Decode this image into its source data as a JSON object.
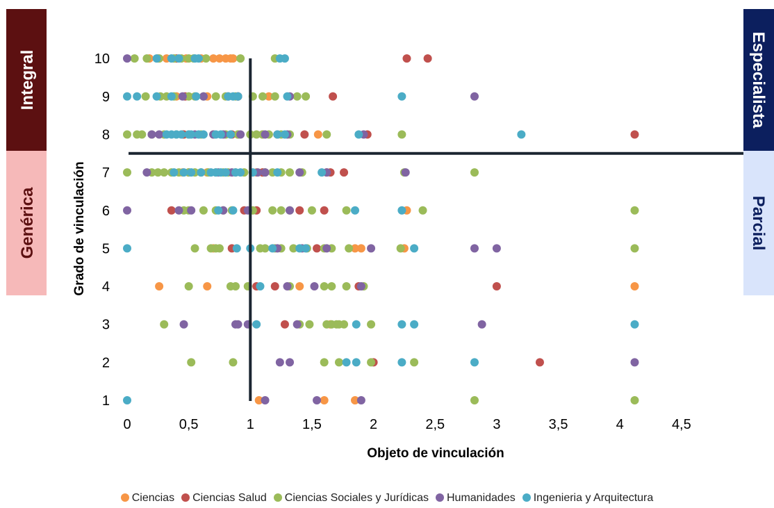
{
  "chart_data": {
    "type": "scatter",
    "xlabel": "Objeto de vinculación",
    "ylabel": "Grado de vinculación",
    "xlim": [
      0,
      4.5
    ],
    "ylim": [
      1,
      10
    ],
    "xticks": [
      "0",
      "0,5",
      "1",
      "1,5",
      "2",
      "2,5",
      "3",
      "3,5",
      "4",
      "4,5"
    ],
    "yticks": [
      "1",
      "2",
      "3",
      "4",
      "5",
      "6",
      "7",
      "8",
      "9",
      "10"
    ],
    "reference_lines": {
      "x": 1,
      "y": 7.5
    },
    "quadrant_labels": [
      {
        "text": "Integral",
        "position": "top-left",
        "color": "#5c1011",
        "text_color": "#ffffff"
      },
      {
        "text": "Genérica",
        "position": "bottom-left",
        "color": "#f6b9b9",
        "text_color": "#5c1011"
      },
      {
        "text": "Especialista",
        "position": "top-right",
        "color": "#0c1f5e",
        "text_color": "#ffffff"
      },
      {
        "text": "Parcial",
        "position": "bottom-right",
        "color": "#d9e4fb",
        "text_color": "#0c1f5e"
      }
    ],
    "legend_position": "bottom",
    "series": [
      {
        "name": "Ciencias",
        "color": "#f79646",
        "points": [
          [
            0.25,
            10
          ],
          [
            0.18,
            10
          ],
          [
            0.32,
            10
          ],
          [
            0.48,
            10
          ],
          [
            0.6,
            10
          ],
          [
            0.7,
            10
          ],
          [
            0.75,
            10
          ],
          [
            0.8,
            10
          ],
          [
            0.84,
            10
          ],
          [
            0.86,
            10
          ],
          [
            0.4,
            9
          ],
          [
            0.65,
            9
          ],
          [
            1.15,
            9
          ],
          [
            0.45,
            8
          ],
          [
            0.9,
            8
          ],
          [
            1.55,
            8
          ],
          [
            0.45,
            7
          ],
          [
            0.65,
            7
          ],
          [
            1.05,
            7
          ],
          [
            1.1,
            7
          ],
          [
            2.27,
            6
          ],
          [
            0.7,
            5
          ],
          [
            1.85,
            5
          ],
          [
            1.9,
            5
          ],
          [
            2.25,
            5
          ],
          [
            0.26,
            4
          ],
          [
            0.65,
            4
          ],
          [
            1.4,
            4
          ],
          [
            4.12,
            4
          ],
          [
            1.65,
            3
          ],
          [
            1.07,
            1
          ],
          [
            1.6,
            1
          ],
          [
            1.85,
            1
          ]
        ]
      },
      {
        "name": "Ciencias Salud",
        "color": "#c0504d",
        "points": [
          [
            0.4,
            10
          ],
          [
            2.27,
            10
          ],
          [
            2.44,
            10
          ],
          [
            0.47,
            9
          ],
          [
            0.9,
            9
          ],
          [
            1.67,
            9
          ],
          [
            0.46,
            8
          ],
          [
            0.85,
            8
          ],
          [
            1.1,
            8
          ],
          [
            1.22,
            8
          ],
          [
            1.44,
            8
          ],
          [
            1.95,
            8
          ],
          [
            4.12,
            8
          ],
          [
            0.5,
            7
          ],
          [
            1.1,
            7
          ],
          [
            1.62,
            7
          ],
          [
            1.65,
            7
          ],
          [
            1.76,
            7
          ],
          [
            0.36,
            6
          ],
          [
            0.95,
            6
          ],
          [
            1.05,
            6
          ],
          [
            1.4,
            6
          ],
          [
            1.6,
            6
          ],
          [
            0.85,
            5
          ],
          [
            1.54,
            5
          ],
          [
            1.05,
            4
          ],
          [
            1.2,
            4
          ],
          [
            1.88,
            4
          ],
          [
            3,
            4
          ],
          [
            1.28,
            3
          ],
          [
            2.0,
            2
          ],
          [
            3.35,
            2
          ]
        ]
      },
      {
        "name": "Ciencias Sociales y Jurídicas",
        "color": "#9bbb59",
        "points": [
          [
            0.06,
            10
          ],
          [
            0.16,
            10
          ],
          [
            0.26,
            10
          ],
          [
            0.38,
            10
          ],
          [
            0.44,
            10
          ],
          [
            0.5,
            10
          ],
          [
            0.54,
            10
          ],
          [
            0.64,
            10
          ],
          [
            0.92,
            10
          ],
          [
            1.2,
            10
          ],
          [
            0.15,
            9
          ],
          [
            0.27,
            9
          ],
          [
            0.32,
            9
          ],
          [
            0.38,
            9
          ],
          [
            0.5,
            9
          ],
          [
            0.55,
            9
          ],
          [
            0.62,
            9
          ],
          [
            0.72,
            9
          ],
          [
            0.8,
            9
          ],
          [
            0.88,
            9
          ],
          [
            1.02,
            9
          ],
          [
            1.1,
            9
          ],
          [
            1.2,
            9
          ],
          [
            1.38,
            9
          ],
          [
            1.45,
            9
          ],
          [
            0.0,
            8
          ],
          [
            0.08,
            8
          ],
          [
            0.12,
            8
          ],
          [
            0.2,
            8
          ],
          [
            0.3,
            8
          ],
          [
            0.4,
            8
          ],
          [
            0.5,
            8
          ],
          [
            0.6,
            8
          ],
          [
            0.7,
            8
          ],
          [
            0.8,
            8
          ],
          [
            0.9,
            8
          ],
          [
            1.0,
            8
          ],
          [
            1.05,
            8
          ],
          [
            1.1,
            8
          ],
          [
            1.15,
            8
          ],
          [
            1.25,
            8
          ],
          [
            1.32,
            8
          ],
          [
            1.62,
            8
          ],
          [
            2.23,
            8
          ],
          [
            0.0,
            7
          ],
          [
            0.2,
            7
          ],
          [
            0.25,
            7
          ],
          [
            0.3,
            7
          ],
          [
            0.36,
            7
          ],
          [
            0.42,
            7
          ],
          [
            0.5,
            7
          ],
          [
            0.55,
            7
          ],
          [
            0.6,
            7
          ],
          [
            0.66,
            7
          ],
          [
            0.72,
            7
          ],
          [
            0.78,
            7
          ],
          [
            0.82,
            7
          ],
          [
            0.88,
            7
          ],
          [
            0.95,
            7
          ],
          [
            1.12,
            7
          ],
          [
            1.18,
            7
          ],
          [
            1.25,
            7
          ],
          [
            1.32,
            7
          ],
          [
            1.42,
            7
          ],
          [
            2.25,
            7
          ],
          [
            2.82,
            7
          ],
          [
            0.46,
            6
          ],
          [
            0.5,
            6
          ],
          [
            0.62,
            6
          ],
          [
            0.72,
            6
          ],
          [
            0.78,
            6
          ],
          [
            0.85,
            6
          ],
          [
            1.02,
            6
          ],
          [
            1.18,
            6
          ],
          [
            1.25,
            6
          ],
          [
            1.32,
            6
          ],
          [
            1.5,
            6
          ],
          [
            1.78,
            6
          ],
          [
            2.4,
            6
          ],
          [
            4.12,
            6
          ],
          [
            0.55,
            5
          ],
          [
            0.68,
            5
          ],
          [
            0.72,
            5
          ],
          [
            0.75,
            5
          ],
          [
            1.08,
            5
          ],
          [
            1.12,
            5
          ],
          [
            1.2,
            5
          ],
          [
            1.25,
            5
          ],
          [
            1.35,
            5
          ],
          [
            1.46,
            5
          ],
          [
            1.6,
            5
          ],
          [
            1.66,
            5
          ],
          [
            1.8,
            5
          ],
          [
            2.22,
            5
          ],
          [
            4.12,
            5
          ],
          [
            0.5,
            4
          ],
          [
            0.84,
            4
          ],
          [
            0.88,
            4
          ],
          [
            0.98,
            4
          ],
          [
            1.32,
            4
          ],
          [
            1.6,
            4
          ],
          [
            1.66,
            4
          ],
          [
            1.78,
            4
          ],
          [
            1.92,
            4
          ],
          [
            0.3,
            3
          ],
          [
            1.4,
            3
          ],
          [
            1.48,
            3
          ],
          [
            1.62,
            3
          ],
          [
            1.66,
            3
          ],
          [
            1.7,
            3
          ],
          [
            1.72,
            3
          ],
          [
            1.76,
            3
          ],
          [
            1.98,
            3
          ],
          [
            0.52,
            2
          ],
          [
            0.86,
            2
          ],
          [
            1.6,
            2
          ],
          [
            1.72,
            2
          ],
          [
            1.98,
            2
          ],
          [
            2.33,
            2
          ],
          [
            2.82,
            1
          ],
          [
            4.12,
            1
          ]
        ]
      },
      {
        "name": "Humanidades",
        "color": "#8064a2",
        "points": [
          [
            0.0,
            10
          ],
          [
            0.45,
            9
          ],
          [
            0.62,
            9
          ],
          [
            0.82,
            9
          ],
          [
            0.9,
            9
          ],
          [
            1.32,
            9
          ],
          [
            2.82,
            9
          ],
          [
            0.2,
            8
          ],
          [
            0.26,
            8
          ],
          [
            0.55,
            8
          ],
          [
            0.7,
            8
          ],
          [
            0.78,
            8
          ],
          [
            0.92,
            8
          ],
          [
            1.12,
            8
          ],
          [
            1.3,
            8
          ],
          [
            1.92,
            8
          ],
          [
            0.16,
            7
          ],
          [
            0.74,
            7
          ],
          [
            0.85,
            7
          ],
          [
            1.06,
            7
          ],
          [
            1.12,
            7
          ],
          [
            1.4,
            7
          ],
          [
            1.62,
            7
          ],
          [
            2.26,
            7
          ],
          [
            0.0,
            6
          ],
          [
            0.42,
            6
          ],
          [
            0.52,
            6
          ],
          [
            0.78,
            6
          ],
          [
            0.98,
            6
          ],
          [
            1.32,
            6
          ],
          [
            1.22,
            5
          ],
          [
            1.42,
            5
          ],
          [
            1.62,
            5
          ],
          [
            1.98,
            5
          ],
          [
            2.82,
            5
          ],
          [
            3.0,
            5
          ],
          [
            1.3,
            4
          ],
          [
            1.52,
            4
          ],
          [
            1.9,
            4
          ],
          [
            0.46,
            3
          ],
          [
            0.88,
            3
          ],
          [
            0.9,
            3
          ],
          [
            0.98,
            3
          ],
          [
            1.38,
            3
          ],
          [
            2.88,
            3
          ],
          [
            1.24,
            2
          ],
          [
            1.32,
            2
          ],
          [
            4.12,
            2
          ],
          [
            1.12,
            1
          ],
          [
            1.54,
            1
          ],
          [
            1.9,
            1
          ]
        ]
      },
      {
        "name": "Ingenieria y Arquitectura",
        "color": "#4bacc6",
        "points": [
          [
            0.24,
            10
          ],
          [
            0.36,
            10
          ],
          [
            0.42,
            10
          ],
          [
            0.55,
            10
          ],
          [
            0.58,
            10
          ],
          [
            1.24,
            10
          ],
          [
            1.28,
            10
          ],
          [
            0.0,
            9
          ],
          [
            0.08,
            9
          ],
          [
            0.24,
            9
          ],
          [
            0.36,
            9
          ],
          [
            0.56,
            9
          ],
          [
            0.82,
            9
          ],
          [
            0.86,
            9
          ],
          [
            0.9,
            9
          ],
          [
            1.3,
            9
          ],
          [
            2.23,
            9
          ],
          [
            0.32,
            8
          ],
          [
            0.36,
            8
          ],
          [
            0.4,
            8
          ],
          [
            0.44,
            8
          ],
          [
            0.5,
            8
          ],
          [
            0.52,
            8
          ],
          [
            0.58,
            8
          ],
          [
            0.62,
            8
          ],
          [
            0.72,
            8
          ],
          [
            0.76,
            8
          ],
          [
            0.84,
            8
          ],
          [
            1.22,
            8
          ],
          [
            1.28,
            8
          ],
          [
            1.88,
            8
          ],
          [
            3.2,
            8
          ],
          [
            0.38,
            7
          ],
          [
            0.46,
            7
          ],
          [
            0.52,
            7
          ],
          [
            0.6,
            7
          ],
          [
            0.68,
            7
          ],
          [
            0.72,
            7
          ],
          [
            0.76,
            7
          ],
          [
            0.8,
            7
          ],
          [
            0.88,
            7
          ],
          [
            0.92,
            7
          ],
          [
            1.02,
            7
          ],
          [
            1.22,
            7
          ],
          [
            1.58,
            7
          ],
          [
            0.74,
            6
          ],
          [
            0.86,
            6
          ],
          [
            1.85,
            6
          ],
          [
            2.23,
            6
          ],
          [
            0.0,
            5
          ],
          [
            0.89,
            5
          ],
          [
            1.0,
            5
          ],
          [
            1.18,
            5
          ],
          [
            1.4,
            5
          ],
          [
            1.45,
            5
          ],
          [
            2.33,
            5
          ],
          [
            1.08,
            4
          ],
          [
            1.05,
            3
          ],
          [
            1.86,
            3
          ],
          [
            2.23,
            3
          ],
          [
            2.33,
            3
          ],
          [
            4.12,
            3
          ],
          [
            1.78,
            2
          ],
          [
            1.86,
            2
          ],
          [
            2.23,
            2
          ],
          [
            2.82,
            2
          ],
          [
            0.0,
            1
          ]
        ]
      }
    ]
  }
}
